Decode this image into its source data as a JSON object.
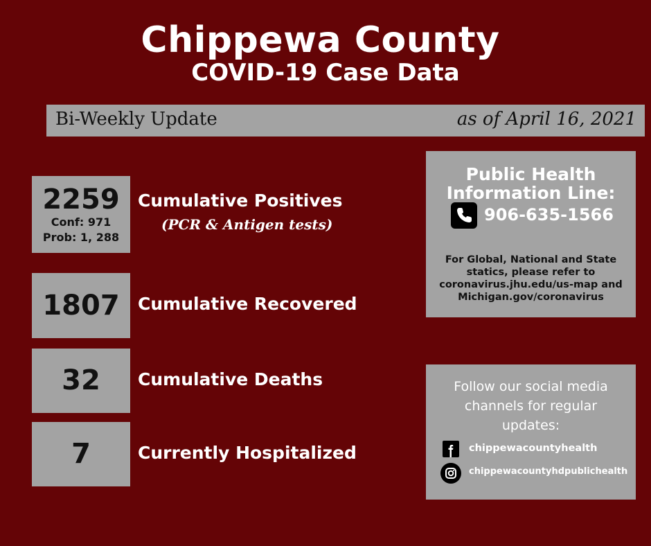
{
  "header": {
    "title": "Chippewa County",
    "subtitle": "COVID-19 Case Data"
  },
  "update_bar": {
    "left_text": "Bi-Weekly Update",
    "right_text": "as of April 16, 2021"
  },
  "stats": [
    {
      "value": "2259",
      "label": "Cumulative Positives",
      "sub1": "Conf: 971",
      "sub2": "Prob: 1, 288",
      "note": "(PCR & Antigen tests)"
    },
    {
      "value": "1807",
      "label": "Cumulative Recovered"
    },
    {
      "value": "32",
      "label": "Cumulative Deaths"
    },
    {
      "value": "7",
      "label": "Currently Hospitalized"
    }
  ],
  "info": {
    "title_line1": "Public Health",
    "title_line2": "Information Line:",
    "phone": "906-635-1566",
    "phone_icon": "phone-icon",
    "desc_line1": "For Global, National and State",
    "desc_line2": "statics, please refer to",
    "desc_line3": "coronavirus.jhu.edu/us-map and",
    "desc_line4": "Michigan.gov/coronavirus"
  },
  "social": {
    "text_line1": "Follow our social media",
    "text_line2": "channels for regular",
    "text_line3": "updates:",
    "facebook_icon": "facebook-icon",
    "facebook": "chippewacountyhealth",
    "instagram_icon": "instagram-icon",
    "instagram": "chippewacountyhdpublichealth"
  },
  "colors": {
    "background": "#640406",
    "panel": "#a3a3a3"
  }
}
